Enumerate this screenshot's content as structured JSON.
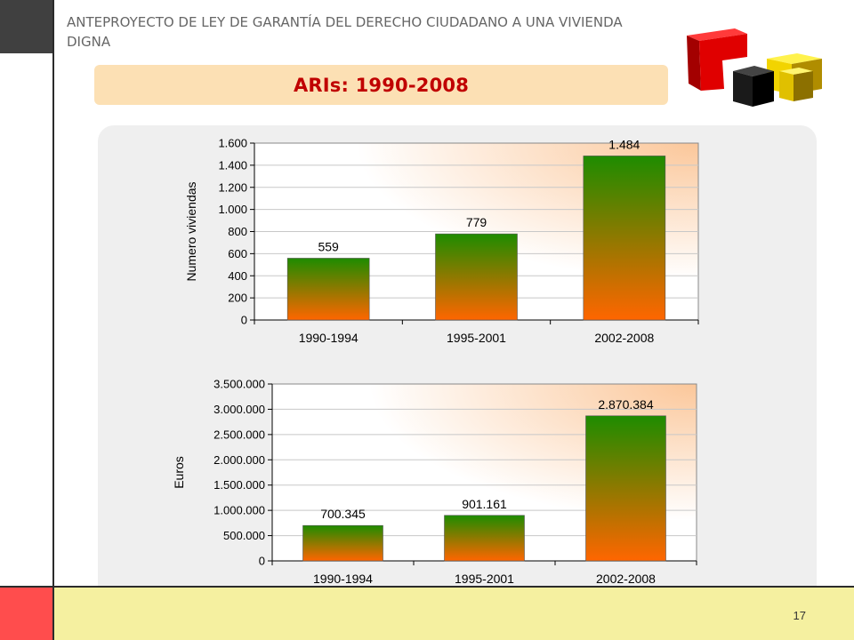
{
  "header": {
    "text": "ANTEPROYECTO  DE LEY DE GARANTÍA DEL DERECHO CIUDADANO A UNA VIVIENDA DIGNA"
  },
  "title": "ARIs: 1990-2008",
  "page_number": "17",
  "logo": {
    "icon": "cubes-logo-icon",
    "colors": [
      "#d40000",
      "#111111",
      "#f2d400"
    ]
  },
  "colors": {
    "bar_top": "#1e8c00",
    "bar_bottom": "#ff6600",
    "title": "#c00000",
    "banner": "#fce0b4",
    "plot_glow": "#fbc79a"
  },
  "chart_data": [
    {
      "type": "bar",
      "categories": [
        "1990-1994",
        "1995-2001",
        "2002-2008"
      ],
      "values": [
        559,
        779,
        1484
      ],
      "value_labels": [
        "559",
        "779",
        "1.484"
      ],
      "ylabel": "Numero viviendas",
      "xlabel": "",
      "ylim": [
        0,
        1600
      ],
      "yticks": [
        0,
        200,
        400,
        600,
        800,
        1000,
        1200,
        1400,
        1600
      ],
      "ytick_labels": [
        "0",
        "200",
        "400",
        "600",
        "800",
        "1.000",
        "1.200",
        "1.400",
        "1.600"
      ],
      "grid": true
    },
    {
      "type": "bar",
      "categories": [
        "1990-1994",
        "1995-2001",
        "2002-2008"
      ],
      "values": [
        700345,
        901161,
        2870384
      ],
      "value_labels": [
        "700.345",
        "901.161",
        "2.870.384"
      ],
      "ylabel": "Euros",
      "xlabel": "",
      "ylim": [
        0,
        3500000
      ],
      "yticks": [
        0,
        500000,
        1000000,
        1500000,
        2000000,
        2500000,
        3000000,
        3500000
      ],
      "ytick_labels": [
        "0",
        "500.000",
        "1.000.000",
        "1.500.000",
        "2.000.000",
        "2.500.000",
        "3.000.000",
        "3.500.000"
      ],
      "grid": true
    }
  ]
}
